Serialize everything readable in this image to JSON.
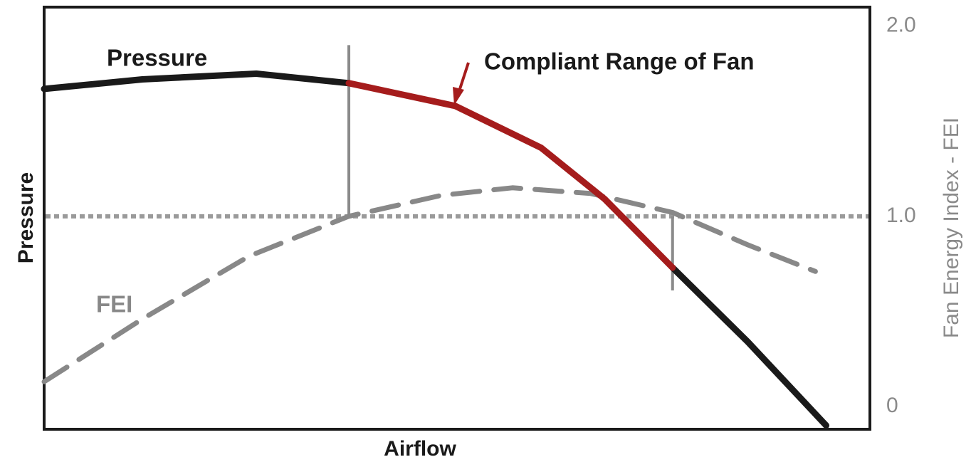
{
  "chart_data": {
    "type": "line",
    "xlabel": "Airflow",
    "ylabel": "Pressure",
    "y2label": "Fan Energy Index - FEI",
    "xlim": [
      0,
      100
    ],
    "y2lim": [
      -0.12,
      2.1
    ],
    "y2ticks": [
      0,
      {
        "value": 1,
        "label": "1.0"
      },
      {
        "value": 2,
        "label": "2.0"
      }
    ],
    "reference_line": 1,
    "markers": [
      {
        "x": 36.9,
        "y1": 1.0,
        "y2": 1.9
      },
      {
        "x": 76.1,
        "y1": 0.61,
        "y2": 1.0
      }
    ],
    "series": [
      {
        "name": "Pressure",
        "color": "#1a1a1a",
        "axis": "y2",
        "dash": false,
        "x": [
          0,
          11.9,
          25.7,
          36.9,
          49.8,
          60.2,
          67.9,
          76.1,
          85.2,
          94.7
        ],
        "values": [
          1.67,
          1.72,
          1.75,
          1.7,
          null,
          null,
          null,
          0.73,
          0.34,
          -0.1
        ]
      },
      {
        "name": "Compliant Range of Fan",
        "color": "#a51c1c",
        "axis": "y2",
        "dash": false,
        "x": [
          0,
          11.9,
          25.7,
          36.9,
          49.8,
          60.2,
          67.9,
          76.1,
          85.2,
          94.7
        ],
        "values": [
          null,
          null,
          null,
          1.7,
          1.58,
          1.36,
          1.09,
          0.73,
          null,
          null
        ]
      },
      {
        "name": "FEI",
        "color": "#888888",
        "axis": "y2",
        "dash": true,
        "x": [
          0,
          11.9,
          24.8,
          36.9,
          48.1,
          56.7,
          66.2,
          76.1,
          85.2,
          93.4
        ],
        "values": [
          0.13,
          0.46,
          0.79,
          1.0,
          1.11,
          1.15,
          1.12,
          1.02,
          0.85,
          0.71
        ]
      }
    ]
  }
}
